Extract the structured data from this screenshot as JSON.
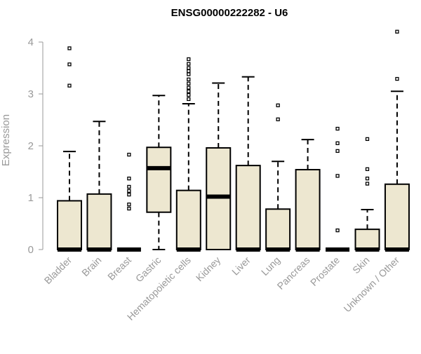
{
  "chart_data": {
    "type": "boxplot",
    "title": "ENSG00000222282 - U6",
    "xlabel": "",
    "ylabel": "Expression",
    "ylim": [
      0,
      4.2
    ],
    "yticks": [
      0,
      1,
      2,
      3,
      4
    ],
    "grid": false,
    "legend": "none",
    "colors": {
      "box_fill": "#EDE7D0",
      "stroke": "#000000",
      "axis": "#999999"
    },
    "categories": [
      "Bladder",
      "Brain",
      "Breast",
      "Gastric",
      "Hematopoietic cells",
      "Kidney",
      "Liver",
      "Lung",
      "Pancreas",
      "Prostate",
      "Skin",
      "Unknown / Other"
    ],
    "boxes": [
      {
        "category": "Bladder",
        "min": 0,
        "q1": 0,
        "median": 0,
        "q3": 0.94,
        "max": 1.89,
        "outliers": [
          3.16,
          3.57,
          3.88
        ]
      },
      {
        "category": "Brain",
        "min": 0,
        "q1": 0,
        "median": 0,
        "q3": 1.07,
        "max": 2.47,
        "outliers": []
      },
      {
        "category": "Breast",
        "min": 0,
        "q1": 0,
        "median": 0,
        "q3": 0,
        "max": 0,
        "outliers": [
          0.79,
          0.87,
          1.06,
          1.13,
          1.21,
          1.37,
          1.83
        ]
      },
      {
        "category": "Gastric",
        "min": 0,
        "q1": 0.72,
        "median": 1.57,
        "q3": 1.97,
        "max": 2.97,
        "outliers": []
      },
      {
        "category": "Hematopoietic cells",
        "min": 0,
        "q1": 0,
        "median": 0,
        "q3": 1.14,
        "max": 2.81,
        "outliers": [
          2.9,
          2.98,
          3.05,
          3.12,
          3.2,
          3.28,
          3.38,
          3.44,
          3.5,
          3.58,
          3.67
        ]
      },
      {
        "category": "Kidney",
        "min": 0,
        "q1": 0,
        "median": 1.02,
        "q3": 1.96,
        "max": 3.21,
        "outliers": []
      },
      {
        "category": "Liver",
        "min": 0,
        "q1": 0,
        "median": 0,
        "q3": 1.62,
        "max": 3.33,
        "outliers": []
      },
      {
        "category": "Lung",
        "min": 0,
        "q1": 0,
        "median": 0,
        "q3": 0.78,
        "max": 1.7,
        "outliers": [
          2.51,
          2.78
        ]
      },
      {
        "category": "Pancreas",
        "min": 0,
        "q1": 0,
        "median": 0,
        "q3": 1.54,
        "max": 2.12,
        "outliers": []
      },
      {
        "category": "Prostate",
        "min": 0,
        "q1": 0,
        "median": 0,
        "q3": 0,
        "max": 0,
        "outliers": [
          0.37,
          1.42,
          1.9,
          2.05,
          2.33
        ]
      },
      {
        "category": "Skin",
        "min": 0,
        "q1": 0,
        "median": 0,
        "q3": 0.39,
        "max": 0.77,
        "outliers": [
          1.27,
          1.37,
          1.55,
          2.13
        ]
      },
      {
        "category": "Unknown / Other",
        "min": 0,
        "q1": 0,
        "median": 0,
        "q3": 1.26,
        "max": 3.05,
        "outliers": [
          3.29,
          4.2
        ]
      }
    ]
  }
}
